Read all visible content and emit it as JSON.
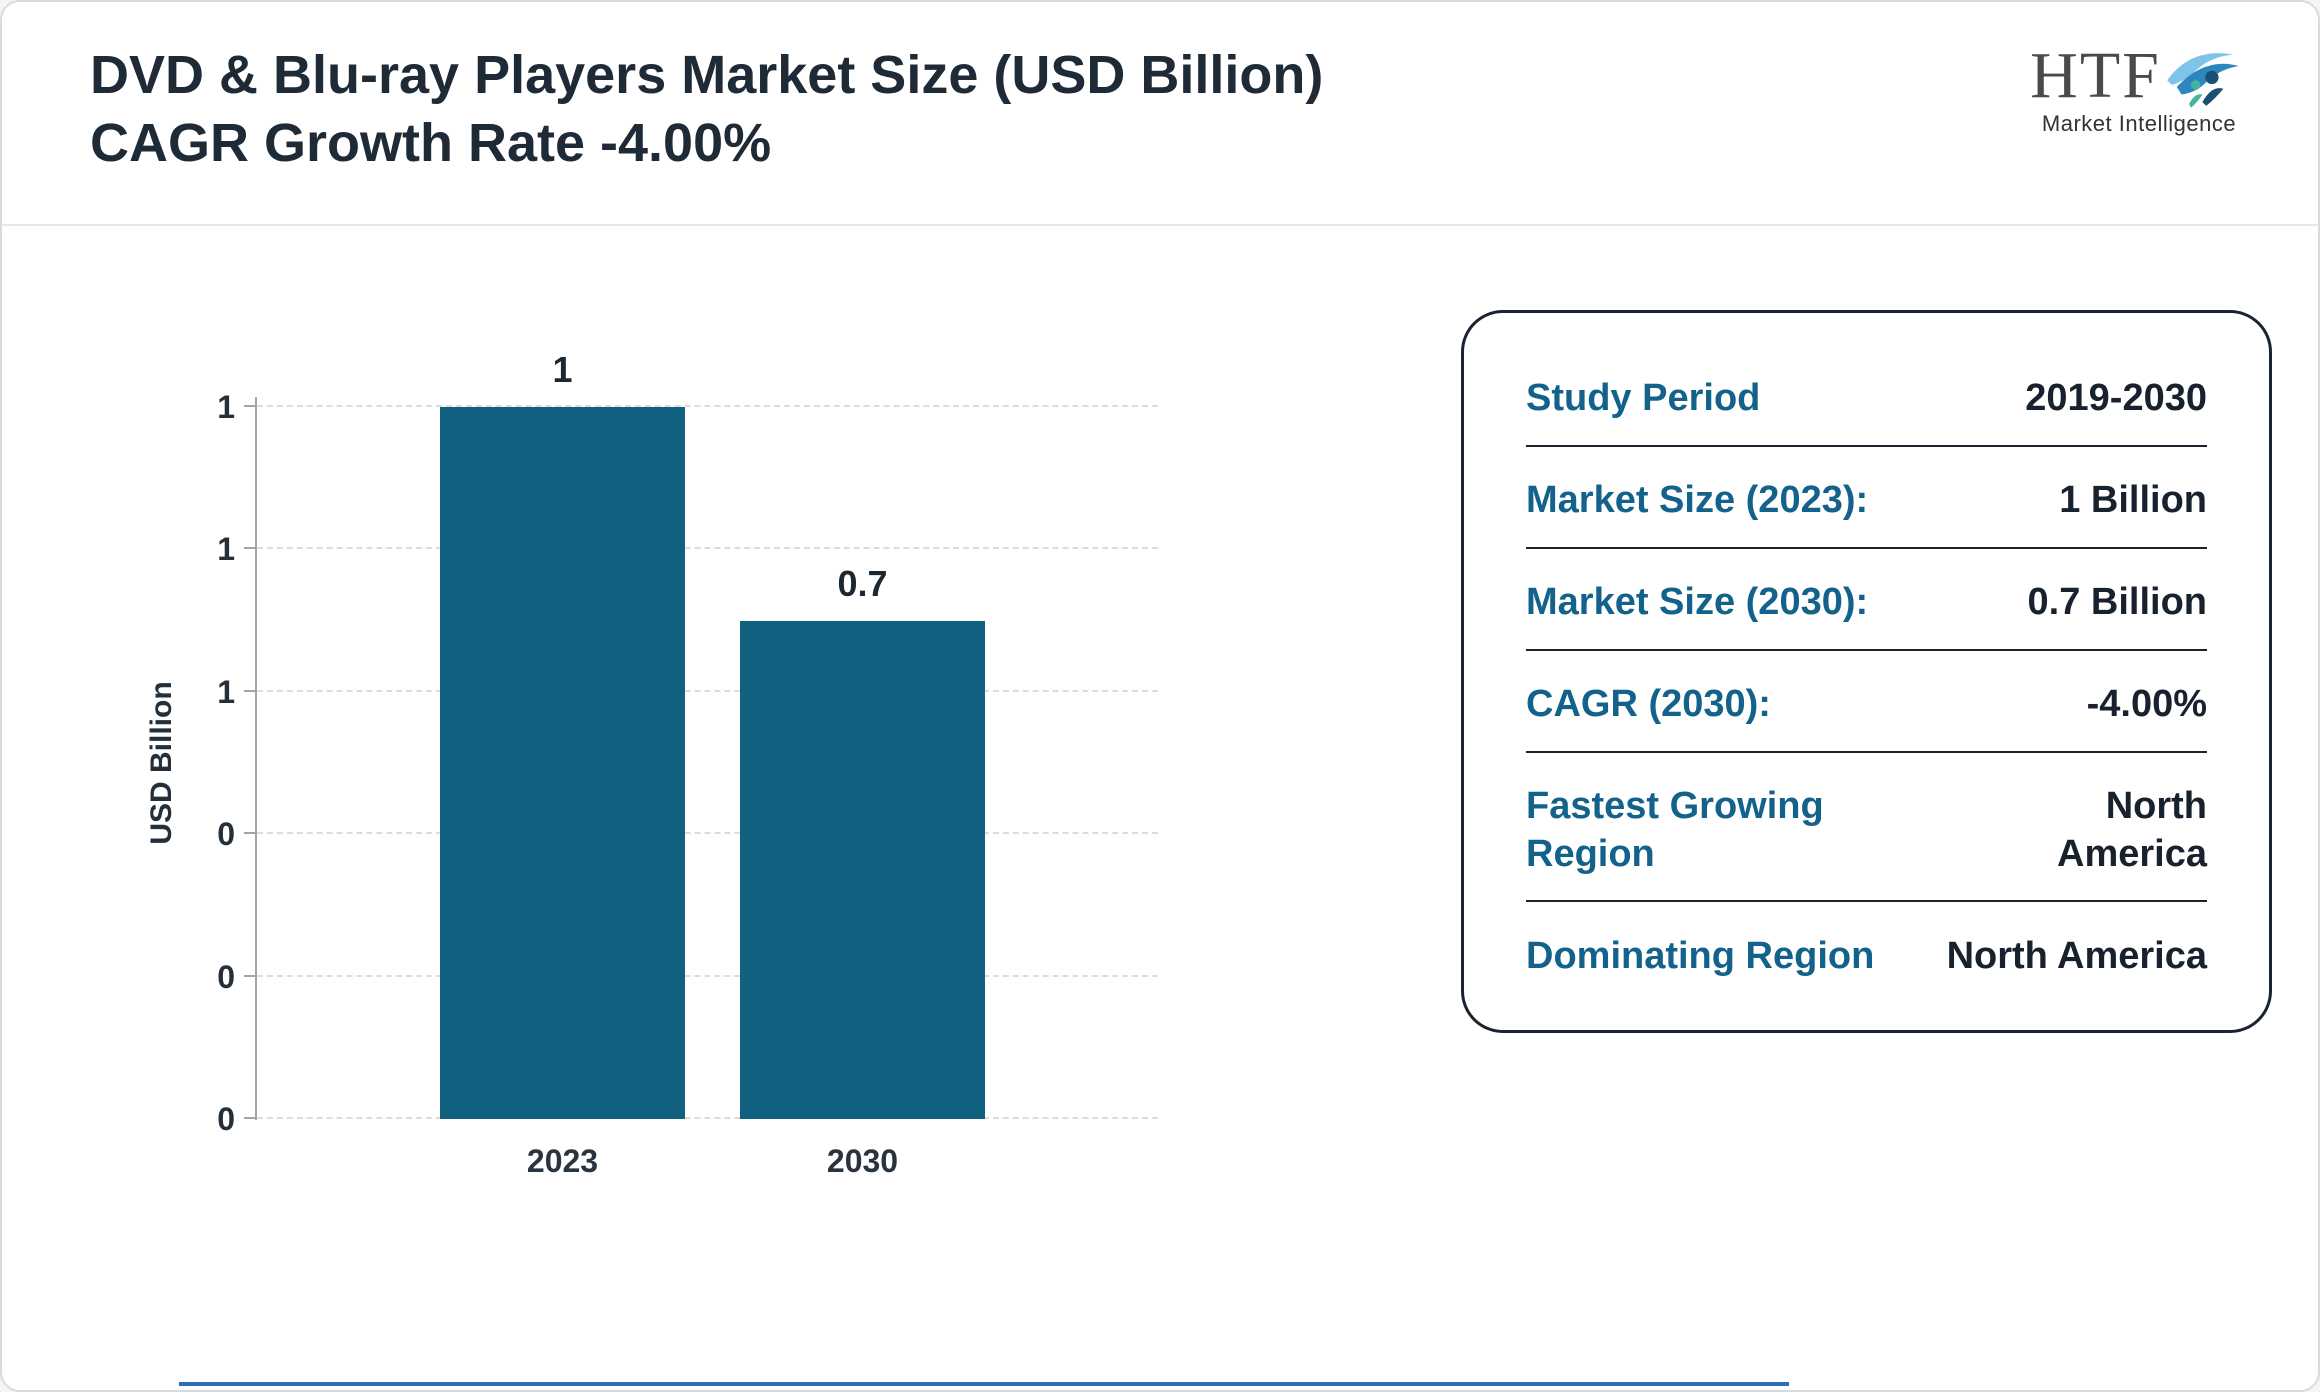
{
  "page": {
    "title_line1": "DVD & Blu-ray Players Market Size (USD Billion)",
    "title_line2": "CAGR Growth Rate -4.00%"
  },
  "logo": {
    "text": "HTF",
    "subtext": "Market Intelligence"
  },
  "chart_data": {
    "type": "bar",
    "title": "DVD & Blu-ray Players Market Size (USD Billion) CAGR Growth Rate -4.00%",
    "categories": [
      "2023",
      "2030"
    ],
    "values": [
      1,
      0.7
    ],
    "value_labels": [
      "1",
      "0.7"
    ],
    "xlabel": "",
    "ylabel": "USD Billion",
    "ylim": [
      0,
      1
    ],
    "ytick_step": 0.2,
    "ytick_labels_bottom_to_top": [
      "0",
      "0",
      "0",
      "1",
      "1",
      "1"
    ],
    "grid": "horizontal-dashed",
    "legend": "none",
    "bar_color": "#10607f"
  },
  "info_card": {
    "rows": [
      {
        "label": "Study Period",
        "value": "2019-2030"
      },
      {
        "label": "Market Size (2023):",
        "value": "1 Billion"
      },
      {
        "label": "Market Size (2030):",
        "value": "0.7 Billion"
      },
      {
        "label": "CAGR (2030):",
        "value": "-4.00%"
      },
      {
        "label": "Fastest Growing Region",
        "value": "North America"
      },
      {
        "label": "Dominating Region",
        "value": "North America"
      }
    ]
  },
  "colors": {
    "bar": "#10607f",
    "card_label": "#13628b",
    "text_dark": "#1f2a37",
    "accent_line": "#2f6db6"
  }
}
